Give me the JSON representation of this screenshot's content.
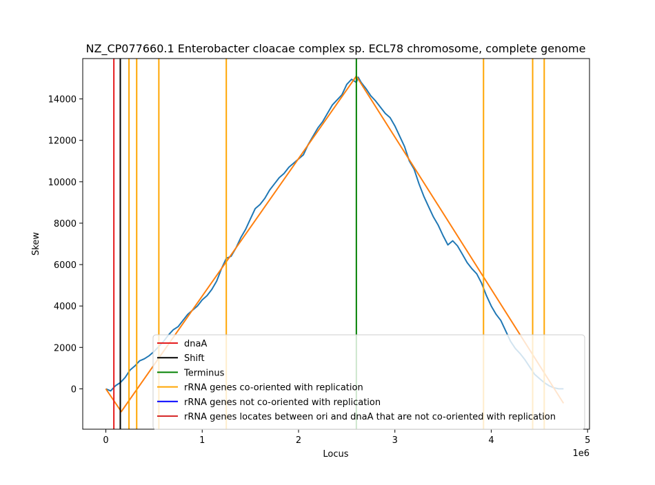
{
  "chart_data": {
    "type": "line",
    "title": "NZ_CP077660.1 Enterobacter cloacae complex sp. ECL78 chromosome, complete genome",
    "xlabel": "Locus",
    "ylabel": "Skew",
    "x_offset_label": "1e6",
    "xlim": [
      -0.24,
      5.02
    ],
    "ylim": [
      -1950,
      15950
    ],
    "x_ticks": [
      0,
      1,
      2,
      3,
      4,
      5
    ],
    "y_ticks": [
      0,
      2000,
      4000,
      6000,
      8000,
      10000,
      12000,
      14000
    ],
    "grid": false,
    "legend_position": "lower-right",
    "colors": {
      "skew": "#1f77b4",
      "fit": "#ff7f0e",
      "dnaA": "#e41a1c",
      "shift": "#000000",
      "terminus": "#008000",
      "rrna_co": "#ffa500",
      "rrna_not": "#0000ff",
      "rrna_between": "#d62728"
    },
    "series": [
      {
        "key": "skew",
        "x": [
          0.0,
          0.05,
          0.1,
          0.15,
          0.2,
          0.25,
          0.3,
          0.35,
          0.4,
          0.45,
          0.5,
          0.55,
          0.6,
          0.65,
          0.7,
          0.75,
          0.8,
          0.85,
          0.9,
          0.95,
          1.0,
          1.05,
          1.1,
          1.15,
          1.2,
          1.25,
          1.3,
          1.35,
          1.4,
          1.45,
          1.5,
          1.55,
          1.6,
          1.65,
          1.7,
          1.75,
          1.8,
          1.85,
          1.9,
          1.95,
          2.0,
          2.05,
          2.1,
          2.15,
          2.2,
          2.25,
          2.3,
          2.35,
          2.4,
          2.45,
          2.5,
          2.55,
          2.6,
          2.62,
          2.65,
          2.7,
          2.75,
          2.8,
          2.85,
          2.9,
          2.95,
          3.0,
          3.05,
          3.1,
          3.15,
          3.2,
          3.25,
          3.3,
          3.35,
          3.4,
          3.45,
          3.5,
          3.55,
          3.6,
          3.65,
          3.7,
          3.75,
          3.8,
          3.85,
          3.9,
          3.95,
          4.0,
          4.05,
          4.1,
          4.15,
          4.2,
          4.25,
          4.3,
          4.35,
          4.4,
          4.45,
          4.5,
          4.55,
          4.6,
          4.65,
          4.7,
          4.75
        ],
        "values": [
          0,
          -100,
          150,
          300,
          550,
          900,
          1100,
          1350,
          1450,
          1600,
          1800,
          2050,
          2300,
          2600,
          2850,
          3000,
          3300,
          3600,
          3800,
          4000,
          4300,
          4500,
          4800,
          5200,
          5800,
          6300,
          6400,
          6800,
          7300,
          7700,
          8200,
          8700,
          8900,
          9200,
          9600,
          9900,
          10200,
          10400,
          10700,
          10900,
          11100,
          11300,
          11800,
          12200,
          12600,
          12900,
          13300,
          13700,
          13950,
          14200,
          14700,
          14950,
          14800,
          15050,
          14800,
          14500,
          14150,
          13900,
          13600,
          13300,
          13100,
          12700,
          12200,
          11700,
          11000,
          10600,
          9900,
          9300,
          8800,
          8300,
          7900,
          7400,
          6950,
          7150,
          6900,
          6500,
          6100,
          5800,
          5550,
          5100,
          4500,
          4000,
          3600,
          3300,
          2800,
          2300,
          1950,
          1700,
          1400,
          1050,
          700,
          500,
          300,
          150,
          50,
          0,
          0
        ]
      },
      {
        "key": "fit",
        "x": [
          0.0,
          0.16,
          2.6,
          4.75
        ],
        "values": [
          0,
          -1100,
          15100,
          -700
        ]
      }
    ],
    "vlines": [
      {
        "key": "dnaA",
        "x": 0.083
      },
      {
        "key": "shift",
        "x": 0.15
      },
      {
        "key": "terminus",
        "x": 2.6
      },
      {
        "key": "rrna_co",
        "x": 0.24
      },
      {
        "key": "rrna_co",
        "x": 0.32
      },
      {
        "key": "rrna_co",
        "x": 0.55
      },
      {
        "key": "rrna_co",
        "x": 1.25
      },
      {
        "key": "rrna_co",
        "x": 3.92
      },
      {
        "key": "rrna_co",
        "x": 4.43
      },
      {
        "key": "rrna_co",
        "x": 4.55
      }
    ],
    "legend": [
      {
        "key": "dnaA",
        "label": "dnaA"
      },
      {
        "key": "shift",
        "label": "Shift"
      },
      {
        "key": "terminus",
        "label": "Terminus"
      },
      {
        "key": "rrna_co",
        "label": "rRNA genes co-oriented with replication"
      },
      {
        "key": "rrna_not",
        "label": "rRNA genes not co-oriented with replication"
      },
      {
        "key": "rrna_between",
        "label": "rRNA genes locates between ori and dnaA that are not co-oriented with replication"
      }
    ]
  }
}
